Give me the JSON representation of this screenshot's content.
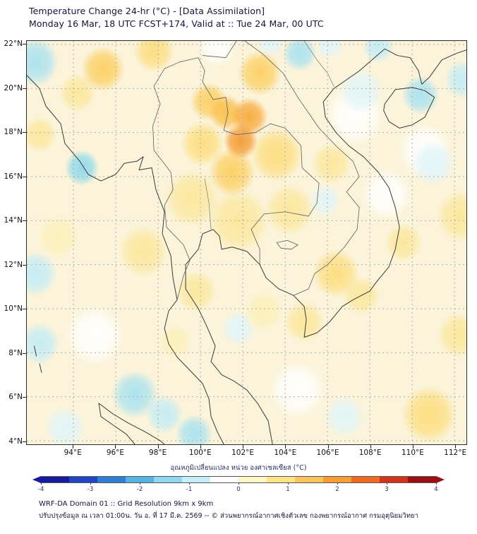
{
  "header": {
    "title": "Temperature Change 24-hr (°C) - [Data Assimilation]",
    "subtitle": "Monday 16 Mar, 18 UTC FCST+174, Valid at :: Tue 24 Mar, 00 UTC"
  },
  "footer": {
    "line1": "WRF-DA Domain 01 :: Grid Resolution 9km x 9km",
    "line2": "ปรับปรุงข้อมูล ณ เวลา 01:00น. วัน อ. ที่ 17 มี.ค. 2569 -- © ส่วนพยากรณ์อากาศเชิงตัวเลข กองพยากรณ์อากาศ กรมอุตุนิยมวิทยา"
  },
  "chart_data": {
    "type": "heatmap",
    "title": "Temperature Change 24-hr (°C) - [Data Assimilation]",
    "subtitle": "Monday 16 Mar, 18 UTC FCST+174, Valid at :: Tue 24 Mar, 00 UTC",
    "units": "°C",
    "grid": true,
    "lon_range": [
      91.8,
      112.56
    ],
    "lat_range": [
      3.84,
      22.16
    ],
    "x_tick_values": [
      94,
      96,
      98,
      100,
      102,
      104,
      106,
      108,
      110,
      112
    ],
    "x_tick_labels": [
      "94°E",
      "96°E",
      "98°E",
      "100°E",
      "102°E",
      "104°E",
      "106°E",
      "108°E",
      "110°E",
      "112°E"
    ],
    "y_tick_values": [
      22,
      20,
      18,
      16,
      14,
      12,
      10,
      8,
      6,
      4
    ],
    "y_tick_labels": [
      "22°N",
      "20°N",
      "18°N",
      "16°N",
      "14°N",
      "12°N",
      "10°N",
      "8°N",
      "6°N",
      "4°N"
    ],
    "colorbar": {
      "label": "อุณหภูมิเปลี่ยนแปลง หน่วย องศาเซลเซียส (°C)",
      "ticks": [
        "-4",
        "-3",
        "-2",
        "-1",
        "0",
        "1",
        "2",
        "3",
        "4"
      ],
      "range": [
        -4,
        4
      ],
      "colors": [
        "#1a1a9c",
        "#2244c8",
        "#2f7fd8",
        "#55b4e4",
        "#8fd8ee",
        "#c6eef7",
        "#ffffff",
        "#fff7c4",
        "#ffe488",
        "#ffc45c",
        "#ff9d33",
        "#f26a1f",
        "#d3331b",
        "#9c0f12"
      ]
    },
    "background_anomaly": 0.4,
    "anomalies": [
      {
        "lon": 107.3,
        "lat": 18.8,
        "dT": 0.0,
        "r": 1.9
      },
      {
        "lon": 110.6,
        "lat": 17.2,
        "dT": 0.0,
        "r": 1.7
      },
      {
        "lon": 108.8,
        "lat": 15.2,
        "dT": 0.0,
        "r": 1.6
      },
      {
        "lon": 95.0,
        "lat": 8.8,
        "dT": 0.0,
        "r": 1.9
      },
      {
        "lon": 104.6,
        "lat": 6.3,
        "dT": 0.0,
        "r": 1.8
      },
      {
        "lon": 100.8,
        "lat": 21.9,
        "dT": 0.0,
        "r": 1.2
      },
      {
        "lon": 94.4,
        "lat": 16.4,
        "dT": -1.2,
        "r": 1.1
      },
      {
        "lon": 92.2,
        "lat": 21.2,
        "dT": -1.0,
        "r": 1.5
      },
      {
        "lon": 104.7,
        "lat": 21.6,
        "dT": -0.9,
        "r": 1.1
      },
      {
        "lon": 106.1,
        "lat": 22.0,
        "dT": -0.5,
        "r": 0.9
      },
      {
        "lon": 110.4,
        "lat": 19.7,
        "dT": -1.1,
        "r": 1.2
      },
      {
        "lon": 112.4,
        "lat": 20.4,
        "dT": -0.8,
        "r": 1.2
      },
      {
        "lon": 108.4,
        "lat": 21.9,
        "dT": -0.6,
        "r": 1.0
      },
      {
        "lon": 92.2,
        "lat": 11.6,
        "dT": -0.7,
        "r": 1.4
      },
      {
        "lon": 92.4,
        "lat": 8.4,
        "dT": -0.6,
        "r": 1.3
      },
      {
        "lon": 96.9,
        "lat": 6.1,
        "dT": -1.1,
        "r": 1.5
      },
      {
        "lon": 98.3,
        "lat": 5.2,
        "dT": -0.7,
        "r": 1.2
      },
      {
        "lon": 99.7,
        "lat": 4.3,
        "dT": -0.9,
        "r": 1.2
      },
      {
        "lon": 101.8,
        "lat": 9.1,
        "dT": -0.5,
        "r": 1.1
      },
      {
        "lon": 105.9,
        "lat": 14.9,
        "dT": -0.5,
        "r": 1.0
      },
      {
        "lon": 107.6,
        "lat": 19.9,
        "dT": -0.5,
        "r": 1.4
      },
      {
        "lon": 111.0,
        "lat": 16.6,
        "dT": -0.5,
        "r": 1.4
      },
      {
        "lon": 93.6,
        "lat": 4.6,
        "dT": -0.5,
        "r": 1.3
      },
      {
        "lon": 106.8,
        "lat": 5.1,
        "dT": -0.5,
        "r": 1.3
      },
      {
        "lon": 103.3,
        "lat": 22.1,
        "dT": -0.5,
        "r": 0.9
      },
      {
        "lon": 101.9,
        "lat": 17.6,
        "dT": 2.8,
        "r": 1.1
      },
      {
        "lon": 102.3,
        "lat": 18.7,
        "dT": 2.2,
        "r": 1.2
      },
      {
        "lon": 101.2,
        "lat": 18.9,
        "dT": 1.8,
        "r": 1.1
      },
      {
        "lon": 102.8,
        "lat": 20.7,
        "dT": 1.6,
        "r": 1.4
      },
      {
        "lon": 100.4,
        "lat": 19.4,
        "dT": 1.4,
        "r": 1.2
      },
      {
        "lon": 101.5,
        "lat": 16.2,
        "dT": 1.5,
        "r": 1.5
      },
      {
        "lon": 100.1,
        "lat": 17.5,
        "dT": 1.2,
        "r": 1.4
      },
      {
        "lon": 103.6,
        "lat": 17.0,
        "dT": 1.0,
        "r": 1.7
      },
      {
        "lon": 99.6,
        "lat": 15.0,
        "dT": 0.9,
        "r": 1.8
      },
      {
        "lon": 101.8,
        "lat": 14.0,
        "dT": 0.9,
        "r": 2.0
      },
      {
        "lon": 95.4,
        "lat": 20.9,
        "dT": 1.4,
        "r": 1.4
      },
      {
        "lon": 94.2,
        "lat": 19.8,
        "dT": 0.9,
        "r": 1.2
      },
      {
        "lon": 97.8,
        "lat": 21.7,
        "dT": 1.0,
        "r": 1.3
      },
      {
        "lon": 97.3,
        "lat": 12.6,
        "dT": 0.8,
        "r": 1.6
      },
      {
        "lon": 99.8,
        "lat": 10.8,
        "dT": 0.7,
        "r": 1.3
      },
      {
        "lon": 104.2,
        "lat": 14.5,
        "dT": 0.9,
        "r": 1.6
      },
      {
        "lon": 106.4,
        "lat": 11.6,
        "dT": 1.1,
        "r": 1.5
      },
      {
        "lon": 107.6,
        "lat": 10.6,
        "dT": 0.9,
        "r": 1.2
      },
      {
        "lon": 104.9,
        "lat": 9.4,
        "dT": 0.7,
        "r": 1.3
      },
      {
        "lon": 110.8,
        "lat": 5.2,
        "dT": 1.0,
        "r": 1.8
      },
      {
        "lon": 112.2,
        "lat": 8.8,
        "dT": 0.8,
        "r": 1.4
      },
      {
        "lon": 112.3,
        "lat": 14.2,
        "dT": 0.9,
        "r": 1.6
      },
      {
        "lon": 109.6,
        "lat": 13.0,
        "dT": 0.7,
        "r": 1.2
      },
      {
        "lon": 93.3,
        "lat": 13.3,
        "dT": 0.6,
        "r": 1.4
      },
      {
        "lon": 106.2,
        "lat": 16.6,
        "dT": 0.7,
        "r": 1.3
      },
      {
        "lon": 92.4,
        "lat": 17.9,
        "dT": 0.8,
        "r": 1.1
      },
      {
        "lon": 103.0,
        "lat": 9.9,
        "dT": 0.6,
        "r": 1.3
      },
      {
        "lon": 98.8,
        "lat": 8.5,
        "dT": 0.6,
        "r": 1.1
      }
    ]
  }
}
